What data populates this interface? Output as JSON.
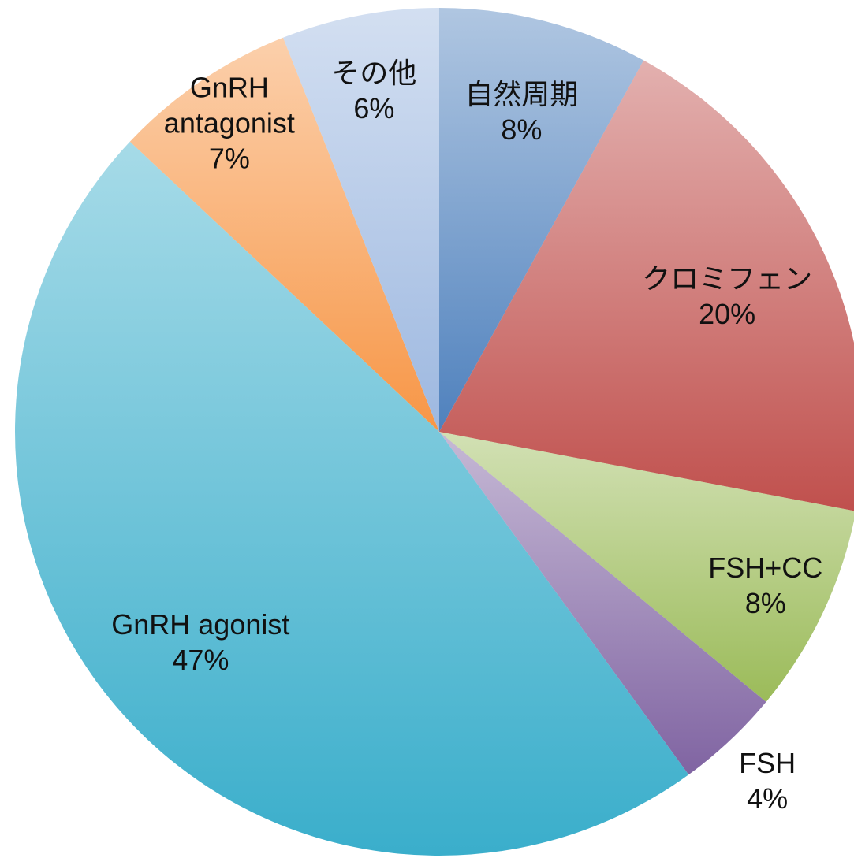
{
  "chart_data": {
    "type": "pie",
    "categories": [
      "自然周期",
      "クロミフェン",
      "FSH+CC",
      "FSH",
      "GnRH agonist",
      "GnRH antagonist",
      "その他"
    ],
    "values": [
      8,
      20,
      8,
      4,
      47,
      7,
      6
    ],
    "value_labels": [
      "8%",
      "20%",
      "8%",
      "4%",
      "47%",
      "7%",
      "6%"
    ],
    "colors": [
      "#4f81bd",
      "#c0504d",
      "#9bbb59",
      "#8064a2",
      "#3aaecb",
      "#f79646",
      "#9db8e0"
    ]
  }
}
